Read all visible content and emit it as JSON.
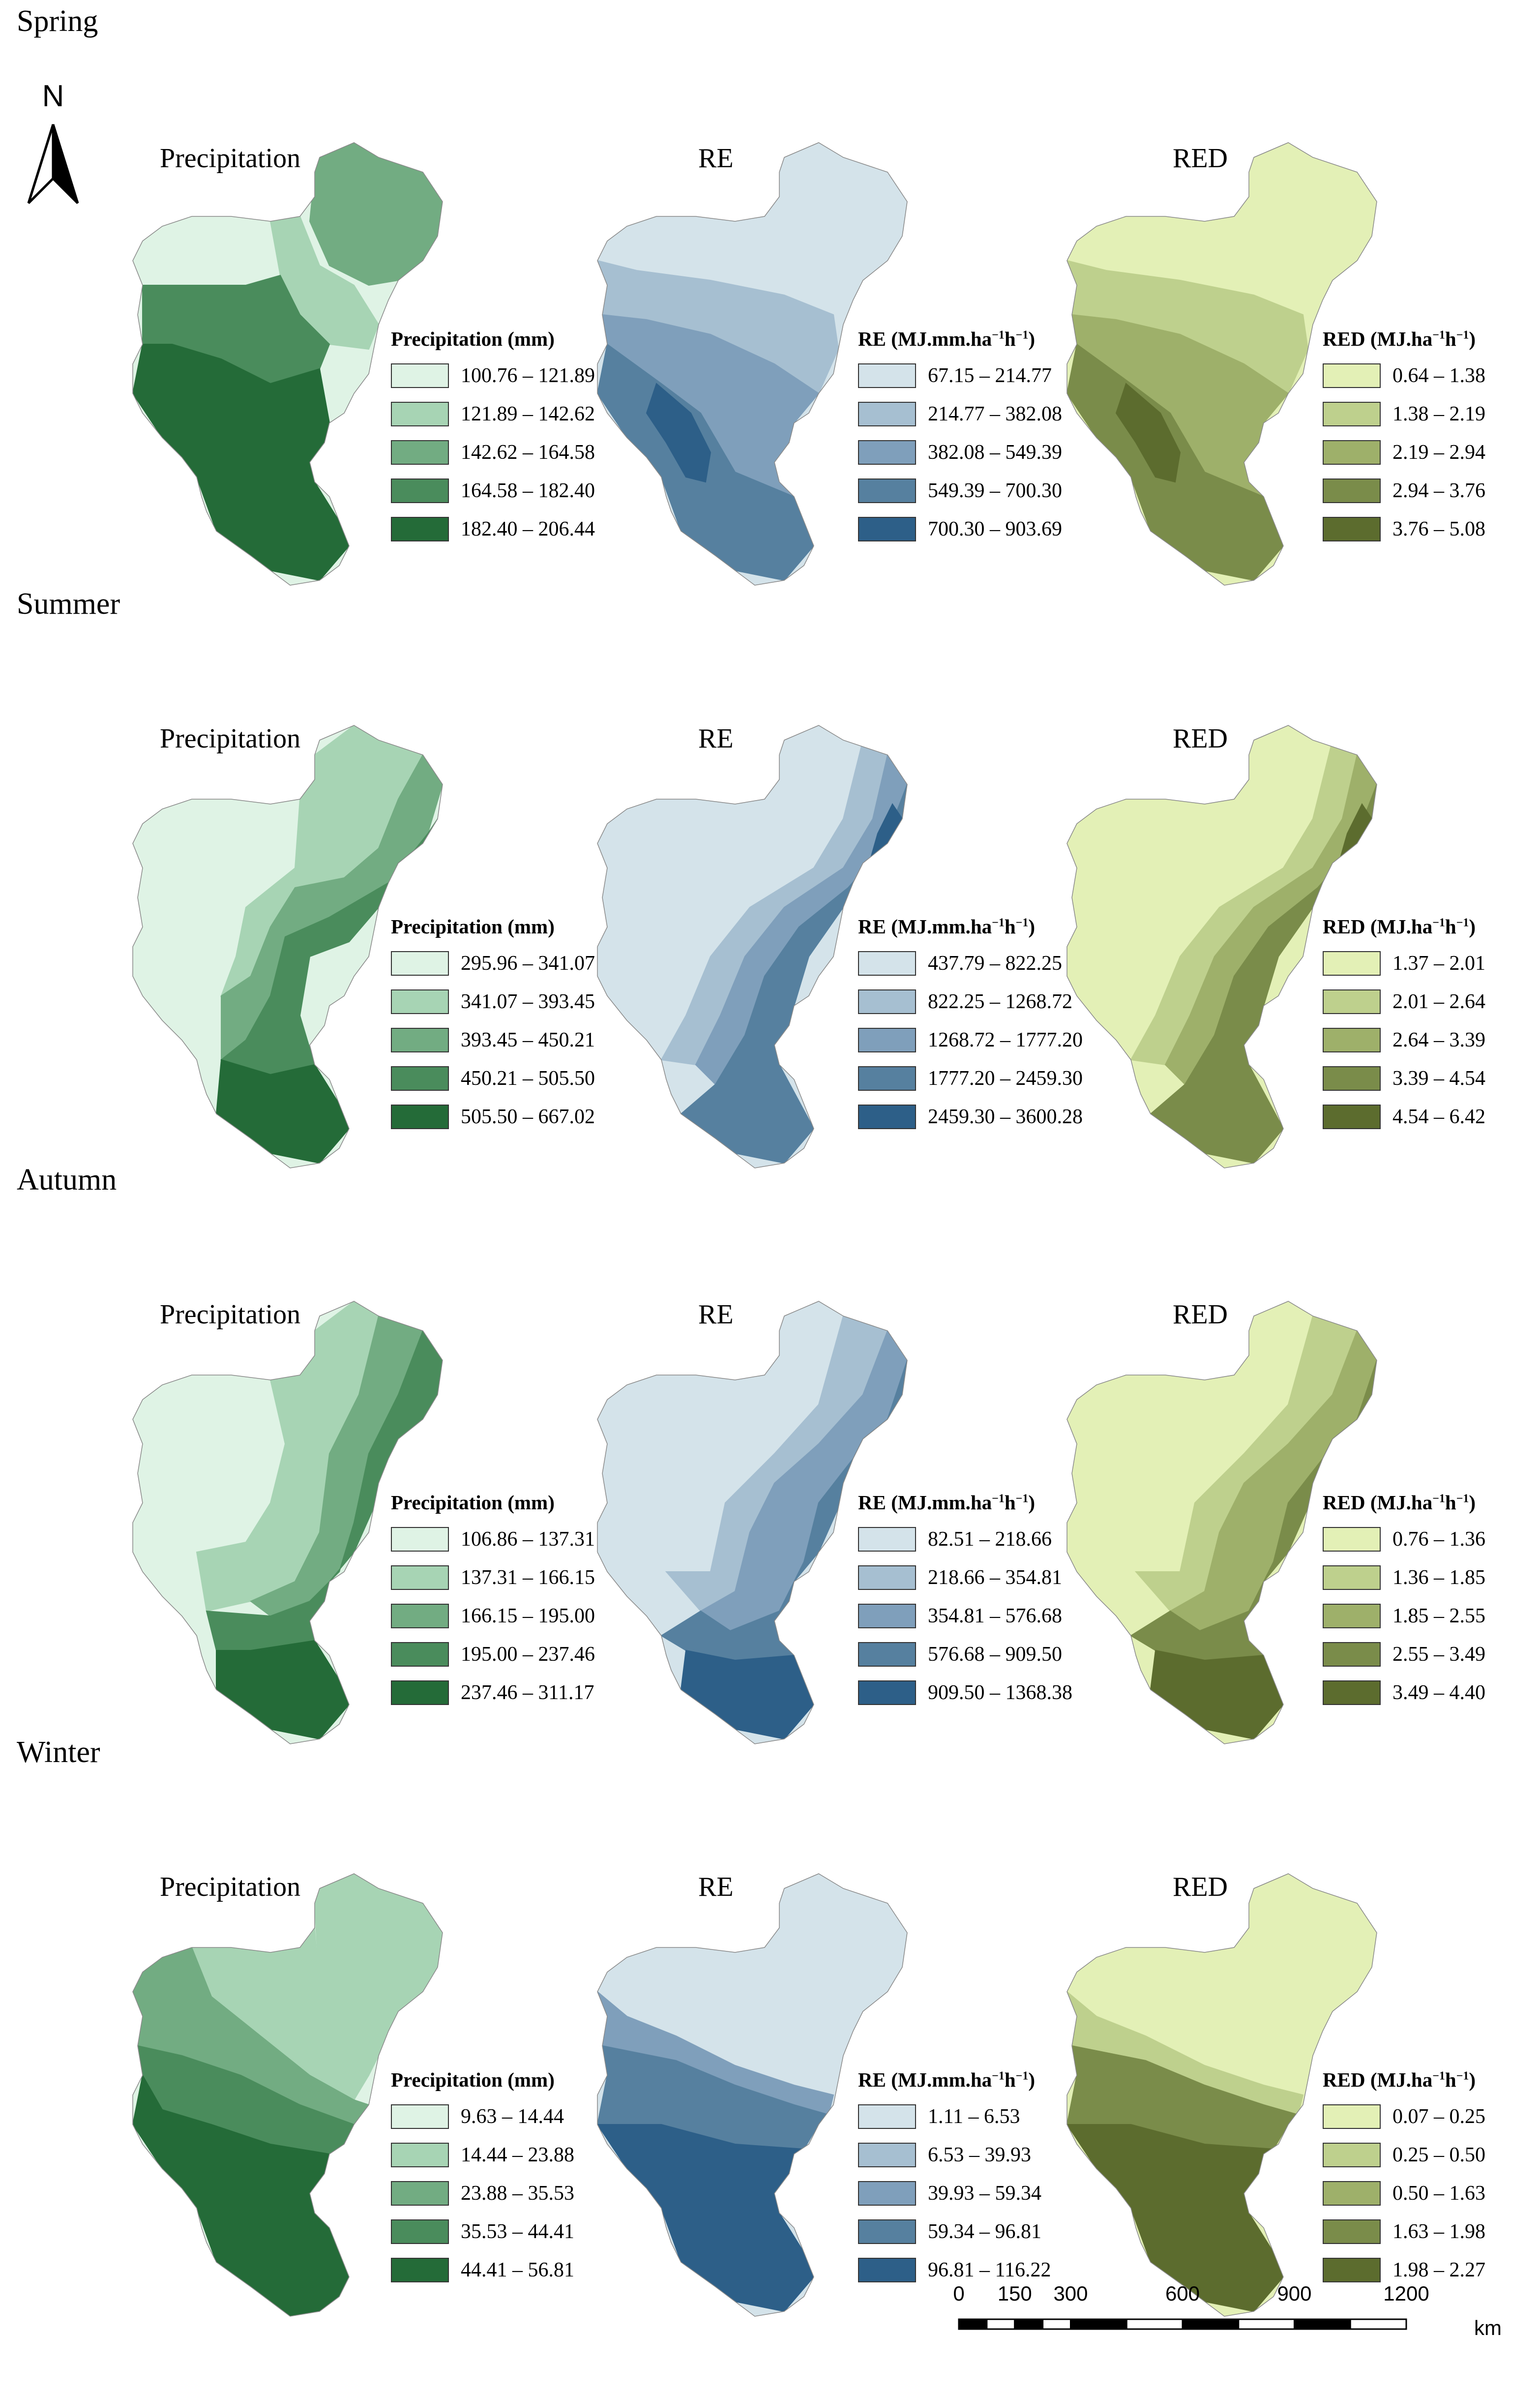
{
  "north_arrow": {
    "label": "N"
  },
  "scale_bar": {
    "ticks": [
      "0",
      "150",
      "300",
      "600",
      "900",
      "1200"
    ],
    "unit": "km"
  },
  "map_titles": {
    "precipitation": "Precipitation",
    "re": "RE",
    "red": "RED"
  },
  "colors": {
    "precipitation": [
      "#dff3e5",
      "#a7d4b4",
      "#72ac82",
      "#4a8c5c",
      "#246b38"
    ],
    "re": [
      "#d4e3ea",
      "#a6bfd1",
      "#7f9fbb",
      "#56809f",
      "#2d5f88"
    ],
    "red": [
      "#e3f0b6",
      "#bed08d",
      "#9eb06a",
      "#7a8c4a",
      "#5c6c2e"
    ]
  },
  "seasons": [
    {
      "name": "Spring",
      "precipitation": {
        "legend_title": "Precipitation (mm)",
        "classes": [
          "100.76 – 121.89",
          "121.89 – 142.62",
          "142.62 – 164.58",
          "164.58 – 182.40",
          "182.40 – 206.44"
        ]
      },
      "re": {
        "legend_title_main": "RE (MJ.mm.ha",
        "legend_title_unit": "h",
        "legend_title_end": ")",
        "classes": [
          "67.15 – 214.77",
          "214.77 – 382.08",
          "382.08 – 549.39",
          "549.39 – 700.30",
          "700.30 – 903.69"
        ]
      },
      "red": {
        "legend_title_main": "RED (MJ.ha",
        "legend_title_unit": "h",
        "legend_title_end": ")",
        "classes": [
          "0.64 – 1.38",
          "1.38 – 2.19",
          "2.19 – 2.94",
          "2.94 – 3.76",
          "3.76 – 5.08"
        ]
      }
    },
    {
      "name": "Summer",
      "precipitation": {
        "legend_title": "Precipitation (mm)",
        "classes": [
          "295.96 – 341.07",
          "341.07 – 393.45",
          "393.45 – 450.21",
          "450.21 – 505.50",
          "505.50 – 667.02"
        ]
      },
      "re": {
        "legend_title_main": "RE (MJ.mm.ha",
        "legend_title_unit": "h",
        "legend_title_end": ")",
        "classes": [
          "437.79 – 822.25",
          "822.25 – 1268.72",
          "1268.72 – 1777.20",
          "1777.20 – 2459.30",
          "2459.30 – 3600.28"
        ]
      },
      "red": {
        "legend_title_main": "RED (MJ.ha",
        "legend_title_unit": "h",
        "legend_title_end": ")",
        "classes": [
          "1.37 – 2.01",
          "2.01 – 2.64",
          "2.64 – 3.39",
          "3.39 – 4.54",
          "4.54 – 6.42"
        ]
      }
    },
    {
      "name": "Autumn",
      "precipitation": {
        "legend_title": "Precipitation (mm)",
        "classes": [
          "106.86 – 137.31",
          "137.31 – 166.15",
          "166.15 – 195.00",
          "195.00 – 237.46",
          "237.46 – 311.17"
        ]
      },
      "re": {
        "legend_title_main": "RE (MJ.mm.ha",
        "legend_title_unit": "h",
        "legend_title_end": ")",
        "classes": [
          "82.51 – 218.66",
          "218.66 – 354.81",
          "354.81 – 576.68",
          "576.68 – 909.50",
          "909.50 – 1368.38"
        ]
      },
      "red": {
        "legend_title_main": "RED (MJ.ha",
        "legend_title_unit": "h",
        "legend_title_end": ")",
        "classes": [
          "0.76 – 1.36",
          "1.36 – 1.85",
          "1.85 – 2.55",
          "2.55 – 3.49",
          "3.49 – 4.40"
        ]
      }
    },
    {
      "name": "Winter",
      "precipitation": {
        "legend_title": "Precipitation (mm)",
        "classes": [
          "9.63 – 14.44",
          "14.44 – 23.88",
          "23.88 – 35.53",
          "35.53 – 44.41",
          "44.41 – 56.81"
        ]
      },
      "re": {
        "legend_title_main": "RE (MJ.mm.ha",
        "legend_title_unit": "h",
        "legend_title_end": ")",
        "classes": [
          "1.11 – 6.53",
          "6.53 – 39.93",
          "39.93 – 59.34",
          "59.34 – 96.81",
          "96.81 – 116.22"
        ]
      },
      "red": {
        "legend_title_main": "RED (MJ.ha",
        "legend_title_unit": "h",
        "legend_title_end": ")",
        "classes": [
          "0.07 – 0.25",
          "0.25 – 0.50",
          "0.50 – 1.63",
          "1.63 – 1.98",
          "1.98 – 2.27"
        ]
      }
    }
  ]
}
